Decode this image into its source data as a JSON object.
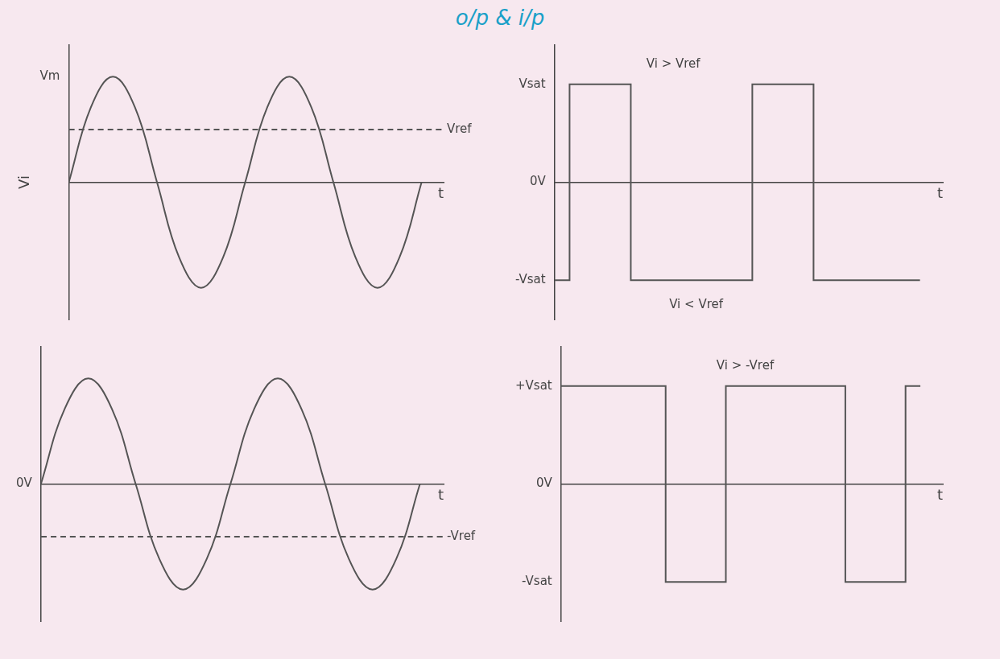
{
  "heading": "o/p & i/p",
  "chart_data": [
    {
      "type": "line",
      "y_label": "Vi",
      "x_label": "t",
      "tick_labels": "y",
      "grid": false,
      "xlim": [
        0,
        8.5
      ],
      "ylim": [
        -1.3,
        1.3
      ],
      "yticks": [
        {
          "value": 1,
          "label": "Vm"
        }
      ],
      "series": [
        {
          "color": "#555555",
          "marker": "none",
          "line_style": "solid",
          "x": [
            0,
            0.5,
            1,
            1.5,
            2,
            2.5,
            3,
            3.5,
            4,
            4.5,
            5,
            5.5,
            6,
            6.5,
            7,
            7.5,
            8
          ],
          "values": [
            0,
            0.71,
            1,
            0.71,
            0,
            -0.71,
            -1,
            -0.71,
            0,
            0.71,
            1,
            0.71,
            0,
            -0.71,
            -1,
            -0.71,
            0
          ]
        },
        {
          "name": "Vref",
          "color": "#555555",
          "marker": "none",
          "line_style": "dashed",
          "x": [
            0,
            8.5
          ],
          "values": [
            0.5,
            0.5
          ]
        }
      ],
      "annotations": []
    },
    {
      "type": "line",
      "x_label": "t",
      "tick_labels": "y",
      "grid": false,
      "xlim": [
        0,
        8.5
      ],
      "ylim": [
        -1.4,
        1.4
      ],
      "yticks": [
        {
          "value": -1,
          "label": "-Vsat"
        },
        {
          "value": 0,
          "label": "0V"
        },
        {
          "value": 1,
          "label": "Vsat"
        }
      ],
      "series": [
        {
          "color": "#555555",
          "marker": "none",
          "line_style": "solid",
          "x": [
            0,
            0.33,
            0.33,
            1.67,
            1.67,
            4.33,
            4.33,
            5.67,
            5.67,
            8
          ],
          "values": [
            -1,
            -1,
            1,
            1,
            -1,
            -1,
            1,
            1,
            -1,
            -1
          ]
        }
      ],
      "annotations": [
        {
          "text": "Vi > Vref",
          "x": 2.6,
          "y": 1.2
        },
        {
          "text": "Vi < Vref",
          "x": 3.1,
          "y": -1.25
        }
      ]
    },
    {
      "type": "line",
      "x_label": "t",
      "tick_labels": "y",
      "grid": false,
      "xlim": [
        0,
        8.5
      ],
      "ylim": [
        -1.3,
        1.3
      ],
      "yticks": [
        {
          "value": 0,
          "label": "0V"
        }
      ],
      "series": [
        {
          "color": "#555555",
          "marker": "none",
          "line_style": "solid",
          "x": [
            0,
            0.5,
            1,
            1.5,
            2,
            2.5,
            3,
            3.5,
            4,
            4.5,
            5,
            5.5,
            6,
            6.5,
            7,
            7.5,
            8
          ],
          "values": [
            0,
            0.71,
            1,
            0.71,
            0,
            -0.71,
            -1,
            -0.71,
            0,
            0.71,
            1,
            0.71,
            0,
            -0.71,
            -1,
            -0.71,
            0
          ]
        },
        {
          "name": "-Vref",
          "color": "#555555",
          "marker": "none",
          "line_style": "dashed",
          "x": [
            0,
            8.5
          ],
          "values": [
            -0.5,
            -0.5
          ]
        }
      ],
      "annotations": []
    },
    {
      "type": "line",
      "x_label": "t",
      "tick_labels": "y",
      "grid": false,
      "xlim": [
        0,
        8.5
      ],
      "ylim": [
        -1.4,
        1.4
      ],
      "yticks": [
        {
          "value": -1,
          "label": "-Vsat"
        },
        {
          "value": 0,
          "label": "0V"
        },
        {
          "value": 1,
          "label": "+Vsat"
        }
      ],
      "series": [
        {
          "color": "#555555",
          "marker": "none",
          "line_style": "solid",
          "x": [
            0,
            2.33,
            2.33,
            3.67,
            3.67,
            6.33,
            6.33,
            7.67,
            7.67,
            8
          ],
          "values": [
            1,
            1,
            -1,
            -1,
            1,
            1,
            -1,
            -1,
            1,
            1
          ]
        }
      ],
      "annotations": [
        {
          "text": "Vi > -Vref",
          "x": 4.1,
          "y": 1.2
        }
      ]
    }
  ]
}
